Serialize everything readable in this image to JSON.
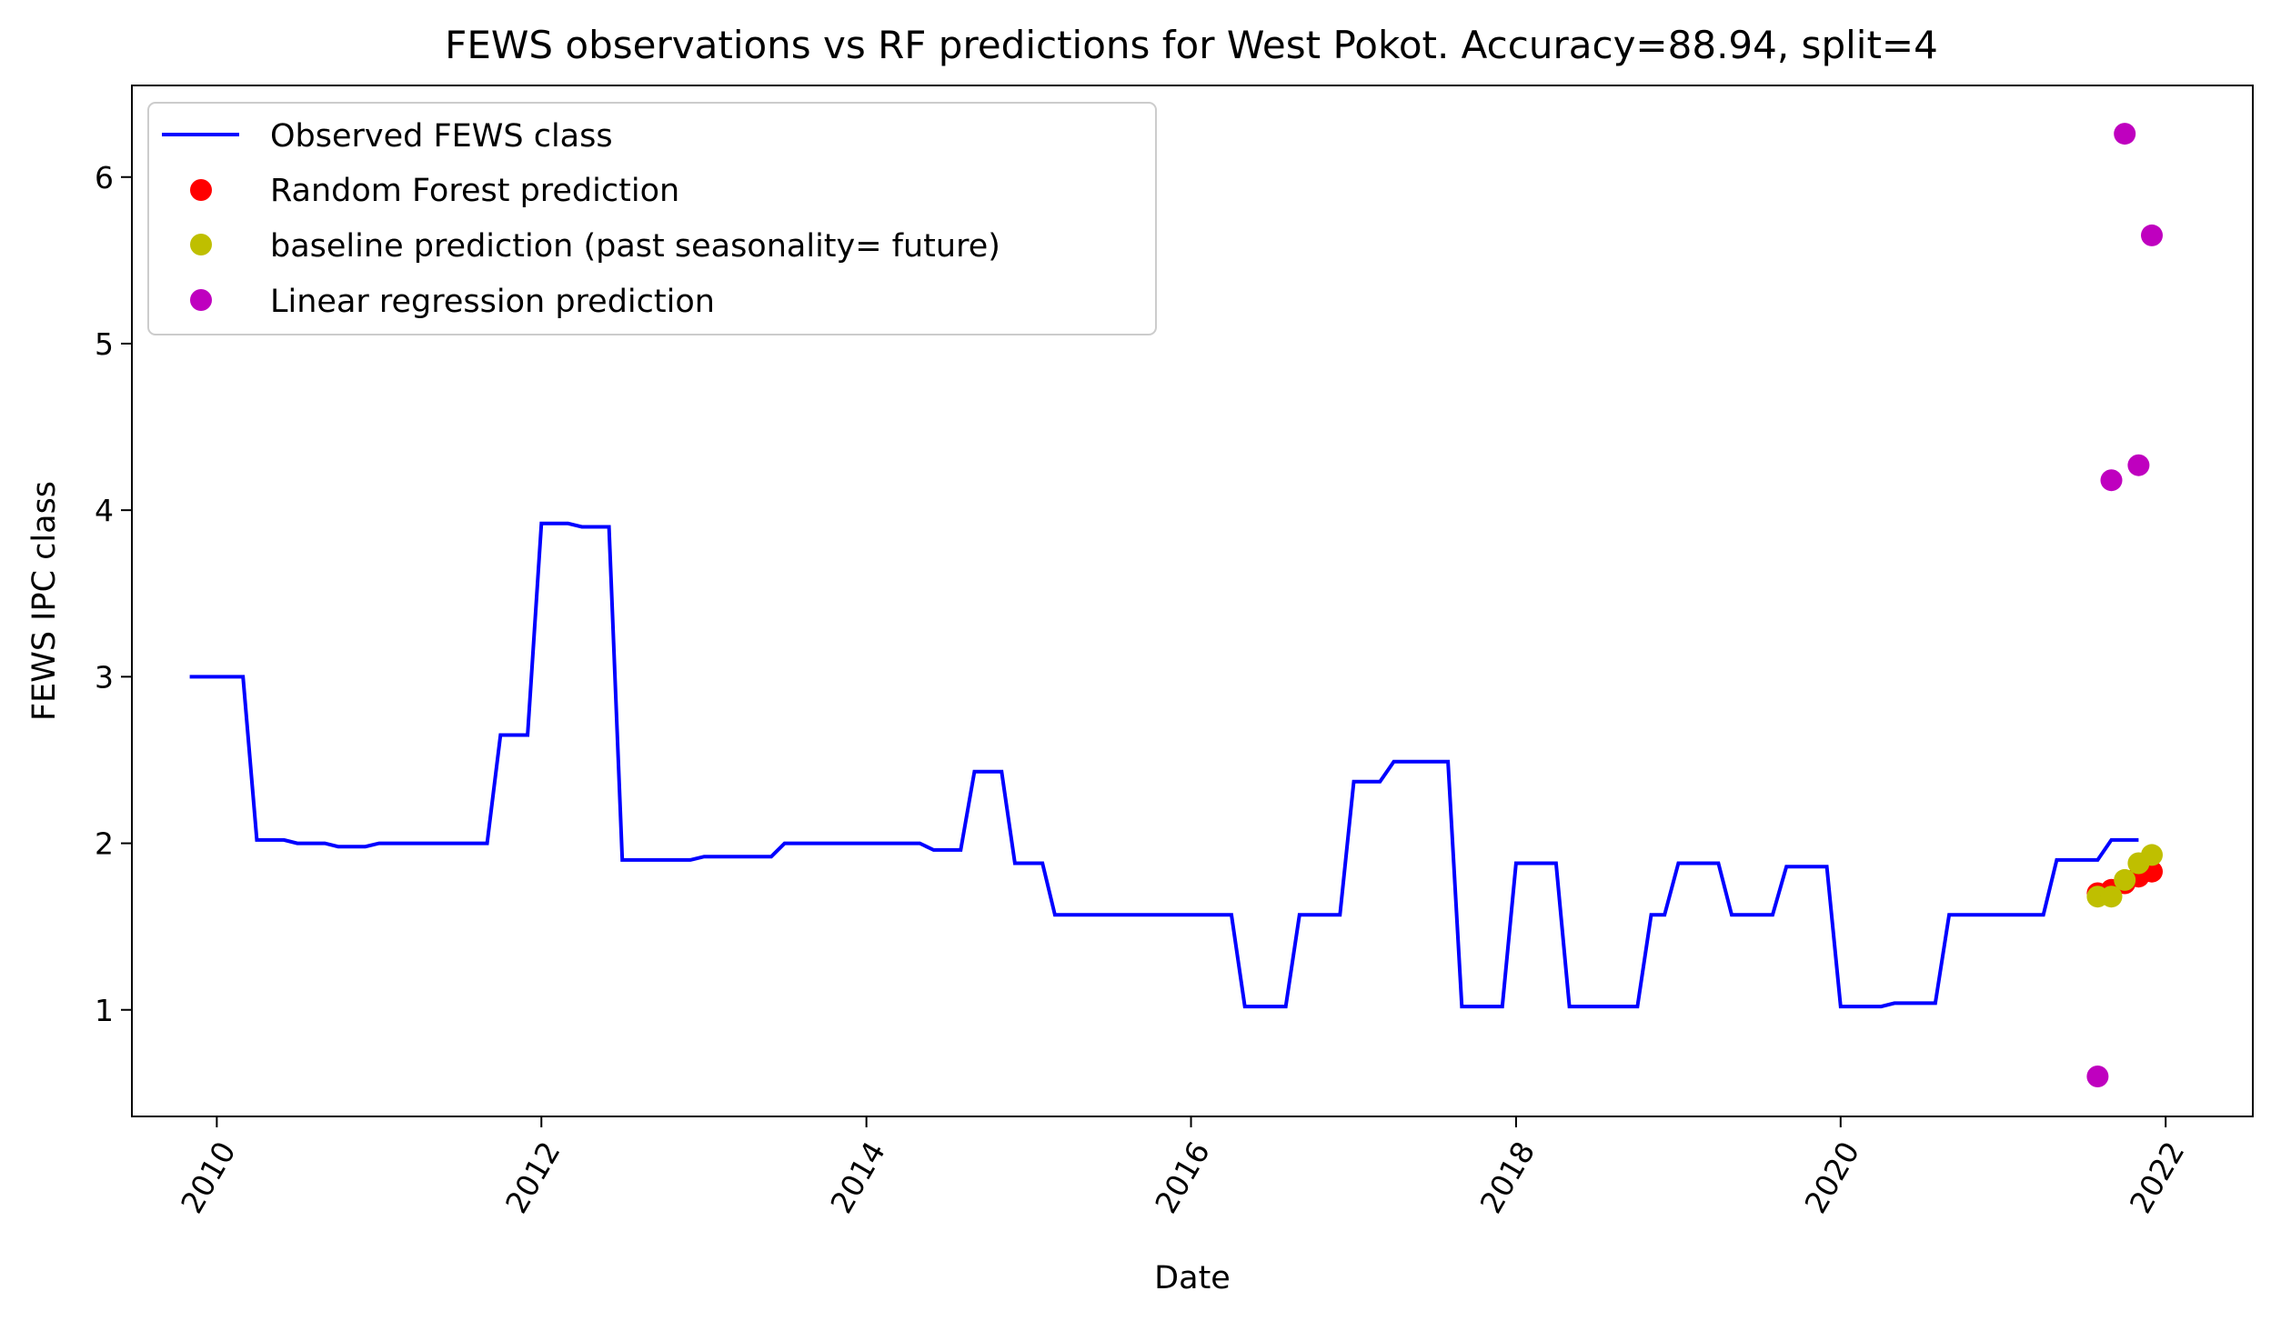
{
  "chart_data": {
    "type": "line",
    "title": "FEWS observations vs RF predictions for West Pokot. Accuracy=88.94, split=4",
    "xlabel": "Date",
    "ylabel": "FEWS IPC class",
    "xlim": [
      "2009-06-24",
      "2022-07-16"
    ],
    "ylim": [
      0.36,
      6.55
    ],
    "xticks": [
      "2010",
      "2012",
      "2014",
      "2016",
      "2018",
      "2020",
      "2022"
    ],
    "yticks": [
      "1",
      "2",
      "3",
      "4",
      "5",
      "6"
    ],
    "grid": false,
    "legend_position": "upper left",
    "legend": [
      "Observed FEWS class",
      "Random Forest prediction",
      "baseline prediction (past seasonality= future)",
      "Linear regression prediction"
    ],
    "series": [
      {
        "name": "Observed FEWS class",
        "style": "line",
        "color": "#0000ff",
        "points": [
          [
            "2009-11-01",
            3.0
          ],
          [
            "2010-02-01",
            3.0
          ],
          [
            "2010-03-01",
            3.0
          ],
          [
            "2010-04-01",
            2.02
          ],
          [
            "2010-06-01",
            2.02
          ],
          [
            "2010-07-01",
            2.0
          ],
          [
            "2010-09-01",
            2.0
          ],
          [
            "2010-10-01",
            1.98
          ],
          [
            "2010-12-01",
            1.98
          ],
          [
            "2011-01-01",
            2.0
          ],
          [
            "2011-09-01",
            2.0
          ],
          [
            "2011-10-01",
            2.65
          ],
          [
            "2011-12-01",
            2.65
          ],
          [
            "2012-01-01",
            3.92
          ],
          [
            "2012-03-01",
            3.92
          ],
          [
            "2012-04-01",
            3.9
          ],
          [
            "2012-06-01",
            3.9
          ],
          [
            "2012-07-01",
            1.9
          ],
          [
            "2012-12-01",
            1.9
          ],
          [
            "2013-01-01",
            1.92
          ],
          [
            "2013-06-01",
            1.92
          ],
          [
            "2013-07-01",
            2.0
          ],
          [
            "2014-05-01",
            2.0
          ],
          [
            "2014-06-01",
            1.96
          ],
          [
            "2014-08-01",
            1.96
          ],
          [
            "2014-09-01",
            2.43
          ],
          [
            "2014-11-01",
            2.43
          ],
          [
            "2014-12-01",
            1.88
          ],
          [
            "2015-02-01",
            1.88
          ],
          [
            "2015-03-01",
            1.57
          ],
          [
            "2016-04-01",
            1.57
          ],
          [
            "2016-05-01",
            1.02
          ],
          [
            "2016-08-01",
            1.02
          ],
          [
            "2016-09-01",
            1.57
          ],
          [
            "2016-12-01",
            1.57
          ],
          [
            "2017-01-01",
            2.37
          ],
          [
            "2017-03-01",
            2.37
          ],
          [
            "2017-04-01",
            2.49
          ],
          [
            "2017-08-01",
            2.49
          ],
          [
            "2017-09-01",
            1.02
          ],
          [
            "2017-12-01",
            1.02
          ],
          [
            "2018-01-01",
            1.88
          ],
          [
            "2018-04-01",
            1.88
          ],
          [
            "2018-05-01",
            1.02
          ],
          [
            "2018-10-01",
            1.02
          ],
          [
            "2018-11-01",
            1.57
          ],
          [
            "2018-12-01",
            1.57
          ],
          [
            "2019-01-01",
            1.88
          ],
          [
            "2019-04-01",
            1.88
          ],
          [
            "2019-05-01",
            1.57
          ],
          [
            "2019-08-01",
            1.57
          ],
          [
            "2019-09-01",
            1.86
          ],
          [
            "2019-12-01",
            1.86
          ],
          [
            "2020-01-01",
            1.02
          ],
          [
            "2020-04-01",
            1.02
          ],
          [
            "2020-05-01",
            1.04
          ],
          [
            "2020-08-01",
            1.04
          ],
          [
            "2020-09-01",
            1.57
          ],
          [
            "2021-04-01",
            1.57
          ],
          [
            "2021-05-01",
            1.9
          ],
          [
            "2021-08-01",
            1.9
          ],
          [
            "2021-09-01",
            2.02
          ],
          [
            "2021-11-01",
            2.02
          ]
        ]
      },
      {
        "name": "Random Forest prediction",
        "style": "marker",
        "color": "#ff0000",
        "points": [
          [
            "2021-08-01",
            1.7
          ],
          [
            "2021-09-01",
            1.72
          ],
          [
            "2021-10-01",
            1.76
          ],
          [
            "2021-11-01",
            1.8
          ],
          [
            "2021-12-01",
            1.83
          ]
        ]
      },
      {
        "name": "baseline prediction (past seasonality= future)",
        "style": "marker",
        "color": "#bfbf00",
        "points": [
          [
            "2021-08-01",
            1.68
          ],
          [
            "2021-09-01",
            1.68
          ],
          [
            "2021-10-01",
            1.78
          ],
          [
            "2021-11-01",
            1.88
          ],
          [
            "2021-12-01",
            1.93
          ]
        ]
      },
      {
        "name": "Linear regression prediction",
        "style": "marker",
        "color": "#bf00bf",
        "points": [
          [
            "2021-08-01",
            0.6
          ],
          [
            "2021-09-01",
            4.18
          ],
          [
            "2021-10-01",
            6.26
          ],
          [
            "2021-11-01",
            4.27
          ],
          [
            "2021-12-01",
            5.65
          ]
        ]
      }
    ]
  }
}
